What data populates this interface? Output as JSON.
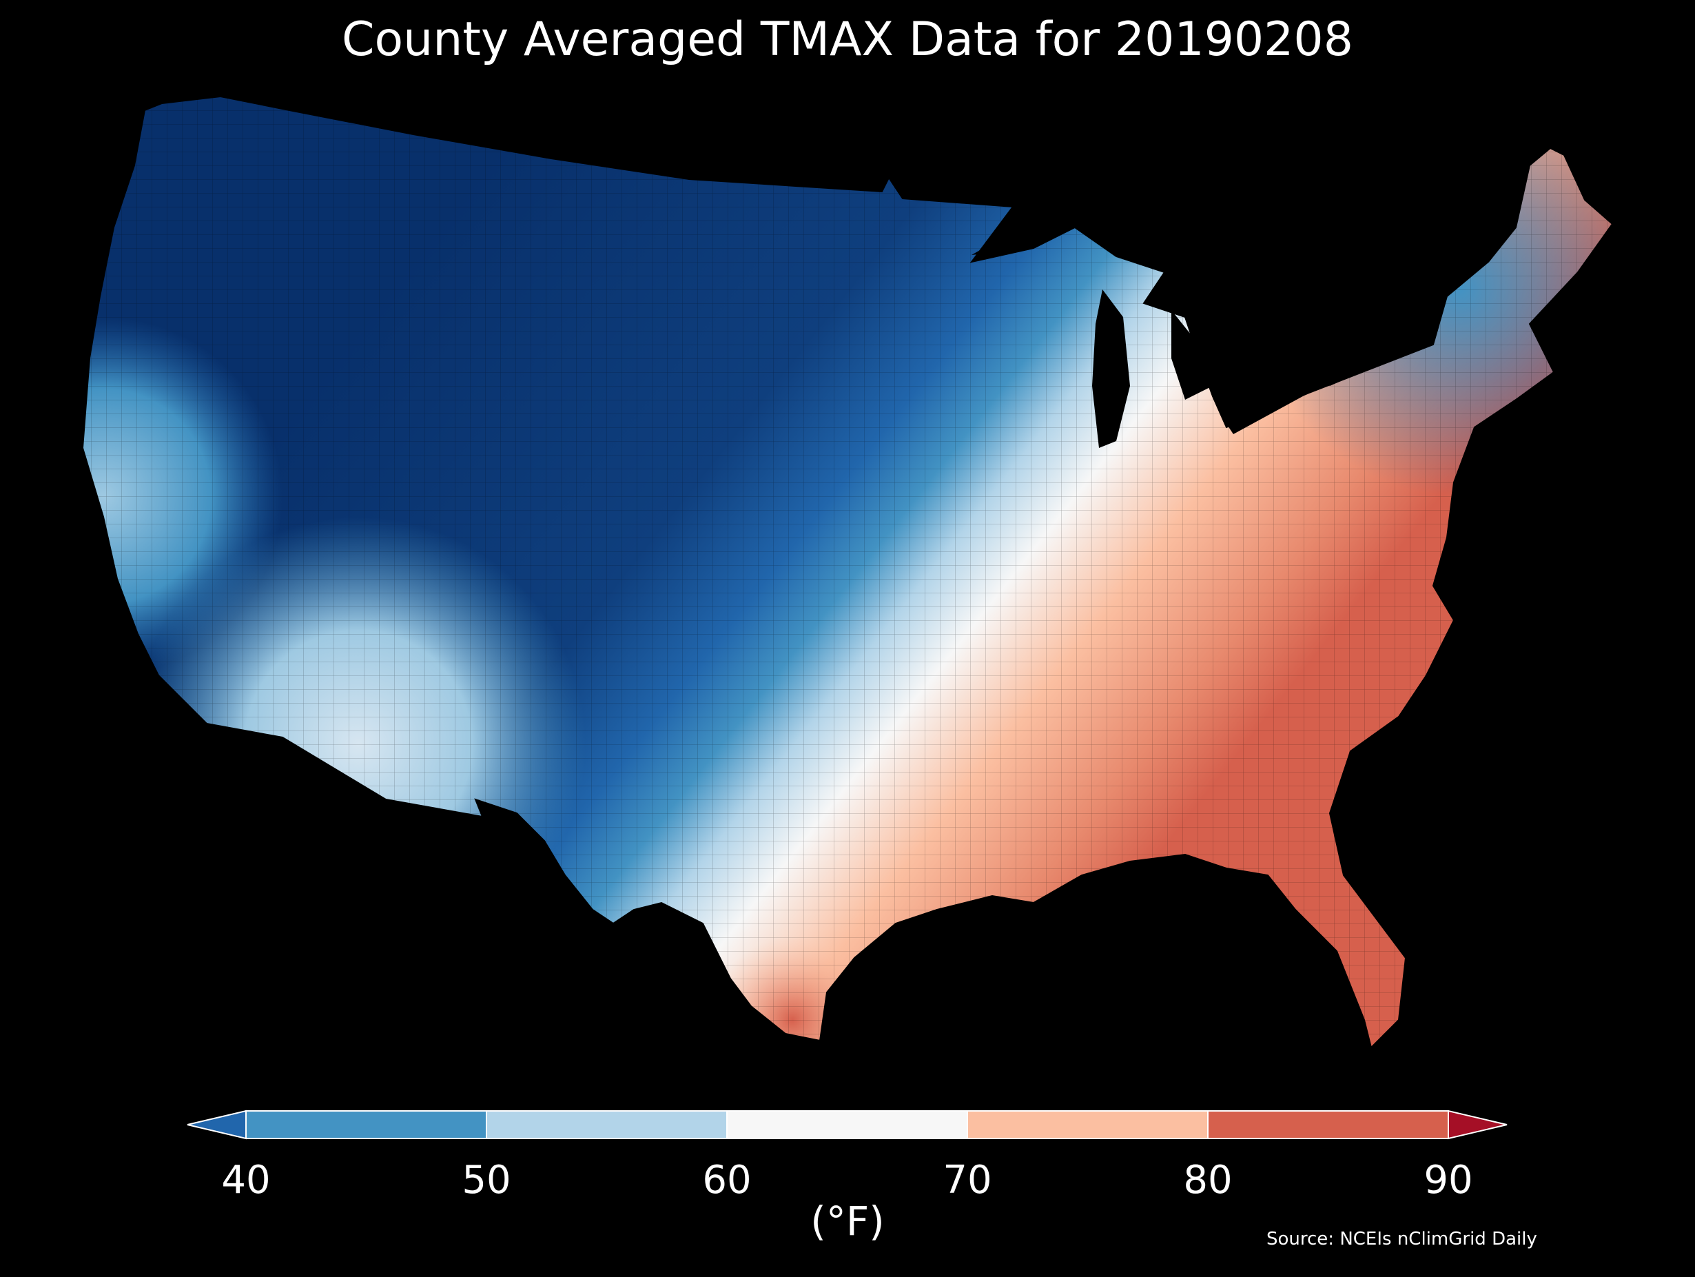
{
  "title": "County Averaged TMAX Data for 20190208",
  "source": "Source: NCEIs nClimGrid Daily",
  "colorbar": {
    "unit_label": "(°F)",
    "ticks": [
      "40",
      "50",
      "60",
      "70",
      "80",
      "90"
    ],
    "bins": [
      {
        "from": null,
        "to": 40,
        "color": "#2166ac"
      },
      {
        "from": 40,
        "to": 50,
        "color": "#4393c3"
      },
      {
        "from": 50,
        "to": 60,
        "color": "#b2d4e9"
      },
      {
        "from": 60,
        "to": 70,
        "color": "#f7f7f7"
      },
      {
        "from": 70,
        "to": 80,
        "color": "#fbbfa1"
      },
      {
        "from": 80,
        "to": 90,
        "color": "#d6604d"
      },
      {
        "from": 90,
        "to": null,
        "color": "#a50f26"
      }
    ],
    "extend": "both"
  },
  "map": {
    "region": "Contiguous United States",
    "variable": "TMAX",
    "date": "20190208",
    "palette": {
      "deep_cold": "#08306b",
      "cold": "#2166ac",
      "cool": "#4393c3",
      "mild": "#b2d4e9",
      "neutral": "#f7f7f7",
      "warm": "#fbbfa1",
      "hot": "#d6604d"
    }
  }
}
